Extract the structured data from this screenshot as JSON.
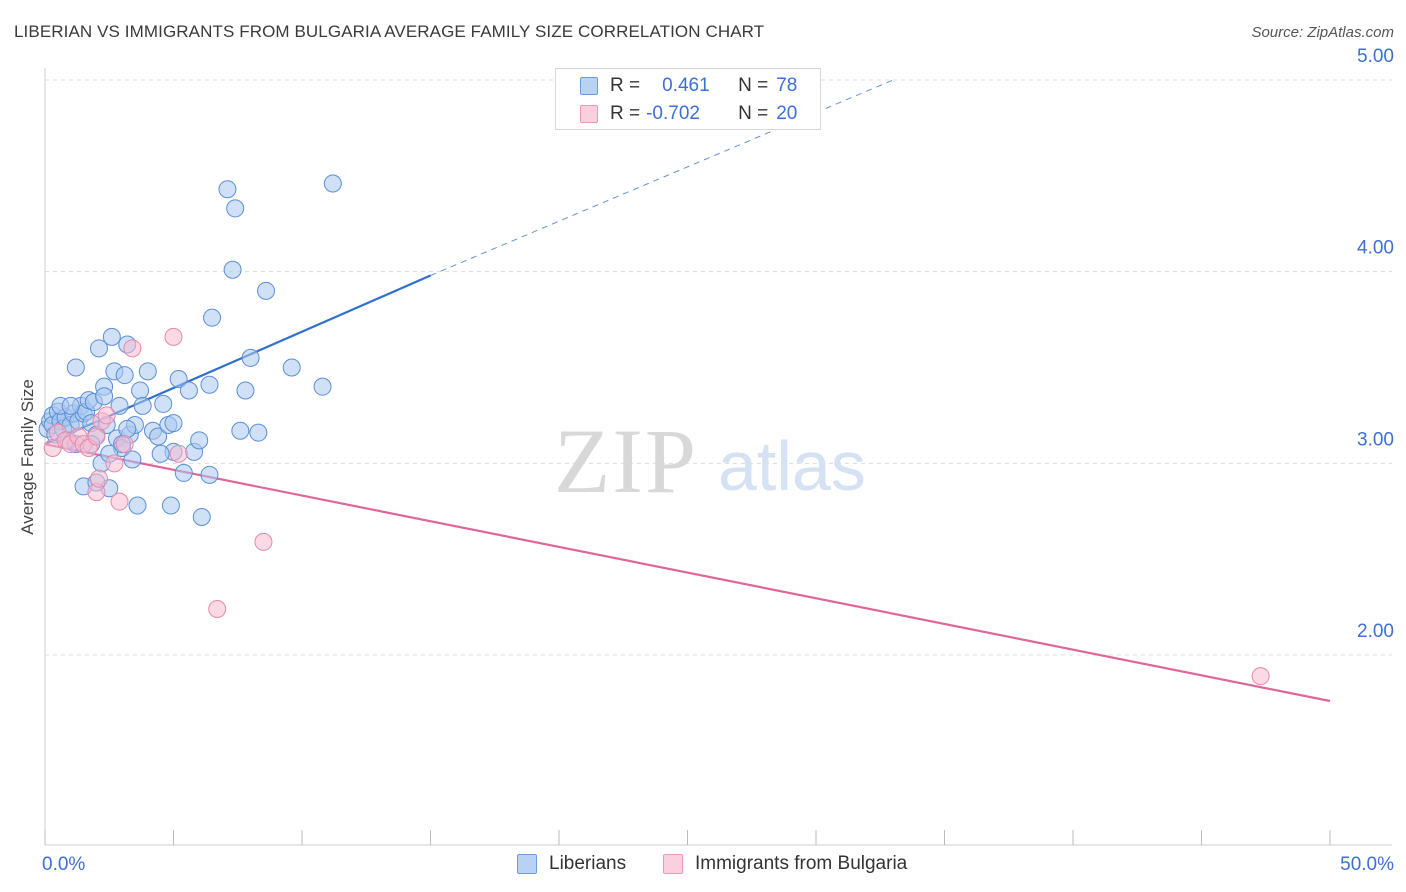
{
  "header": {
    "title": "LIBERIAN VS IMMIGRANTS FROM BULGARIA AVERAGE FAMILY SIZE CORRELATION CHART",
    "source": "Source: ZipAtlas.com"
  },
  "watermark": {
    "zip": "ZIP",
    "atlas": "atlas"
  },
  "legend": {
    "rows": [
      {
        "r_label": "R =",
        "r_value": "0.461",
        "n_label": "N =",
        "n_value": "78"
      },
      {
        "r_label": "R =",
        "r_value": "-0.702",
        "n_label": "N =",
        "n_value": "20"
      }
    ]
  },
  "bottom_legend": {
    "series1": "Liberians",
    "series2": "Immigrants from Bulgaria"
  },
  "colors": {
    "liberians_fill": "#a9c8f0",
    "liberians_stroke": "#5b8fd9",
    "liberians_line": "#2f6fce",
    "bulgaria_fill": "#f7bcd0",
    "bulgaria_stroke": "#e58aaa",
    "bulgaria_line": "#e0659a",
    "tick_color": "#3d6fd6",
    "grid": "#dcdcdc"
  },
  "chart_data": {
    "type": "scatter",
    "title": "LIBERIAN VS IMMIGRANTS FROM BULGARIA AVERAGE FAMILY SIZE CORRELATION CHART",
    "xlabel": "",
    "ylabel": "Average Family Size",
    "xlim": [
      0,
      50
    ],
    "ylim": [
      1.0,
      5.1
    ],
    "x_tick_labels": [
      "0.0%",
      "50.0%"
    ],
    "y_ticks": [
      2.0,
      3.0,
      4.0,
      5.0
    ],
    "y_tick_labels": [
      "2.00",
      "3.00",
      "4.00",
      "5.00"
    ],
    "grid": true,
    "legend_position": "top-center",
    "series": [
      {
        "name": "Liberians",
        "points": [
          [
            0.1,
            3.18
          ],
          [
            0.2,
            3.22
          ],
          [
            0.3,
            3.25
          ],
          [
            0.3,
            3.2
          ],
          [
            0.4,
            3.15
          ],
          [
            0.5,
            3.27
          ],
          [
            0.6,
            3.22
          ],
          [
            0.7,
            3.18
          ],
          [
            0.8,
            3.24
          ],
          [
            0.9,
            3.12
          ],
          [
            1.0,
            3.2
          ],
          [
            1.1,
            3.26
          ],
          [
            1.2,
            3.5
          ],
          [
            1.3,
            3.22
          ],
          [
            1.4,
            3.3
          ],
          [
            1.5,
            3.26
          ],
          [
            1.6,
            3.27
          ],
          [
            1.7,
            3.33
          ],
          [
            1.8,
            3.21
          ],
          [
            1.9,
            3.32
          ],
          [
            2.0,
            3.15
          ],
          [
            2.1,
            3.6
          ],
          [
            2.2,
            3.0
          ],
          [
            2.3,
            3.4
          ],
          [
            2.4,
            3.2
          ],
          [
            2.5,
            2.87
          ],
          [
            2.6,
            3.66
          ],
          [
            2.7,
            3.48
          ],
          [
            2.8,
            3.13
          ],
          [
            2.9,
            3.3
          ],
          [
            3.0,
            3.08
          ],
          [
            3.1,
            3.46
          ],
          [
            3.2,
            3.62
          ],
          [
            3.3,
            3.15
          ],
          [
            3.4,
            3.02
          ],
          [
            3.5,
            3.2
          ],
          [
            3.6,
            2.78
          ],
          [
            3.7,
            3.38
          ],
          [
            3.8,
            3.3
          ],
          [
            4.0,
            3.48
          ],
          [
            4.2,
            3.17
          ],
          [
            4.4,
            3.14
          ],
          [
            4.6,
            3.31
          ],
          [
            4.8,
            3.2
          ],
          [
            4.9,
            2.78
          ],
          [
            5.0,
            3.06
          ],
          [
            5.2,
            3.44
          ],
          [
            5.4,
            2.95
          ],
          [
            5.6,
            3.38
          ],
          [
            5.8,
            3.06
          ],
          [
            6.0,
            3.12
          ],
          [
            6.1,
            2.72
          ],
          [
            6.4,
            3.41
          ],
          [
            6.5,
            3.76
          ],
          [
            7.1,
            4.43
          ],
          [
            7.3,
            4.01
          ],
          [
            7.6,
            3.17
          ],
          [
            7.8,
            3.38
          ],
          [
            8.0,
            3.55
          ],
          [
            8.3,
            3.16
          ],
          [
            8.6,
            3.9
          ],
          [
            9.6,
            3.5
          ],
          [
            10.8,
            3.4
          ],
          [
            11.2,
            4.46
          ],
          [
            1.5,
            2.88
          ],
          [
            2.0,
            2.9
          ],
          [
            2.5,
            3.05
          ],
          [
            3.0,
            3.1
          ],
          [
            0.6,
            3.3
          ],
          [
            1.2,
            3.1
          ],
          [
            4.5,
            3.05
          ],
          [
            6.4,
            2.94
          ],
          [
            7.4,
            4.33
          ],
          [
            3.2,
            3.18
          ],
          [
            2.3,
            3.35
          ],
          [
            1.8,
            3.1
          ],
          [
            5.0,
            3.21
          ],
          [
            1.0,
            3.3
          ]
        ]
      },
      {
        "name": "Immigrants from Bulgaria",
        "points": [
          [
            0.3,
            3.08
          ],
          [
            0.5,
            3.16
          ],
          [
            0.8,
            3.12
          ],
          [
            1.0,
            3.1
          ],
          [
            1.3,
            3.14
          ],
          [
            1.5,
            3.1
          ],
          [
            1.7,
            3.08
          ],
          [
            2.0,
            3.14
          ],
          [
            2.0,
            2.85
          ],
          [
            2.1,
            2.92
          ],
          [
            2.2,
            3.22
          ],
          [
            2.4,
            3.25
          ],
          [
            2.7,
            3.0
          ],
          [
            2.9,
            2.8
          ],
          [
            3.1,
            3.1
          ],
          [
            3.4,
            3.6
          ],
          [
            5.0,
            3.66
          ],
          [
            5.2,
            3.05
          ],
          [
            6.7,
            2.24
          ],
          [
            8.5,
            2.59
          ]
        ]
      },
      {
        "name": "Immigrants from Bulgaria",
        "points": [
          [
            47.3,
            1.89
          ]
        ]
      }
    ],
    "trendlines": [
      {
        "series": "Liberians",
        "x": [
          0,
          15
        ],
        "y": [
          3.1,
          3.98
        ],
        "style": "solid"
      },
      {
        "series": "Liberians",
        "x": [
          15,
          33
        ],
        "y": [
          3.98,
          5.0
        ],
        "style": "dashed"
      },
      {
        "series": "Immigrants from Bulgaria",
        "x": [
          0,
          50
        ],
        "y": [
          3.1,
          1.76
        ],
        "style": "solid"
      }
    ]
  }
}
